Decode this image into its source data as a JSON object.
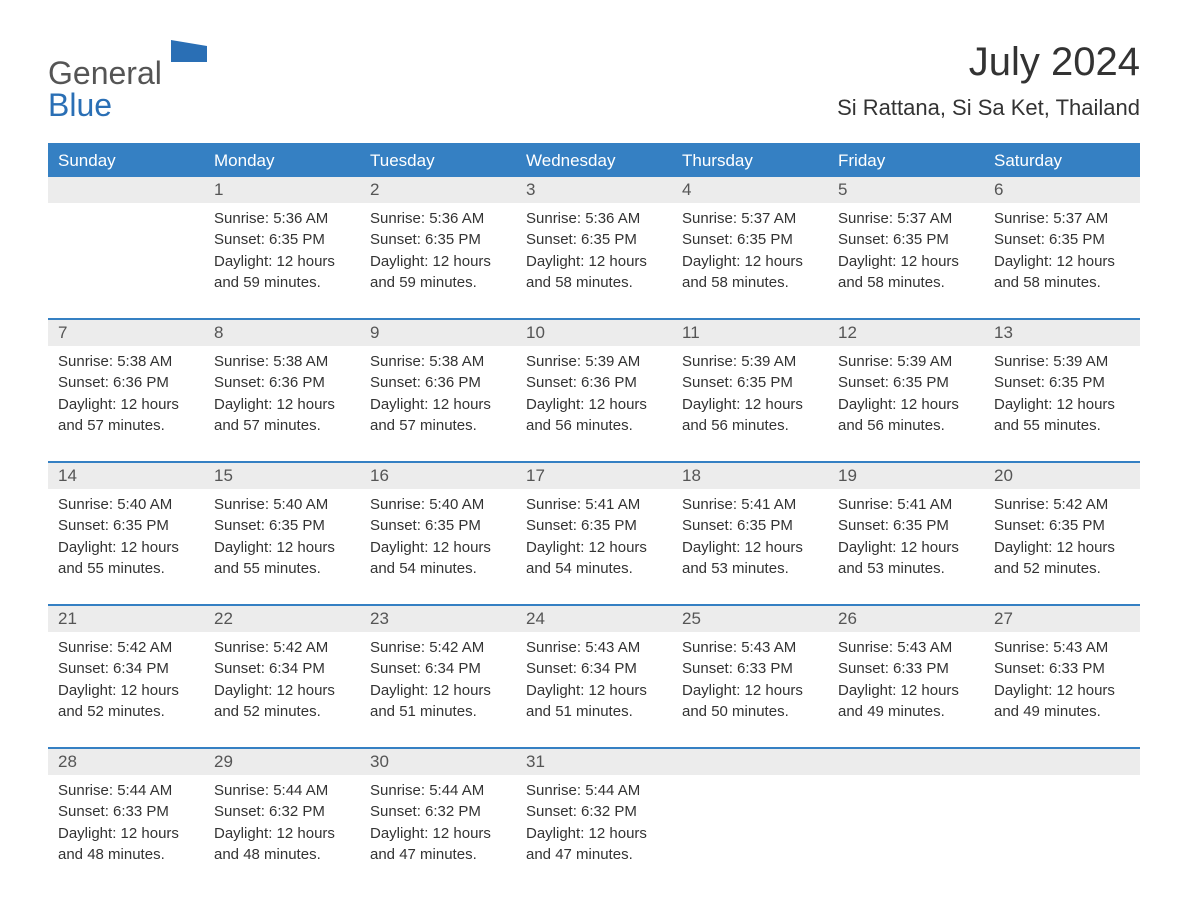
{
  "logo": {
    "text1": "General",
    "text2": "Blue"
  },
  "title": "July 2024",
  "location": "Si Rattana, Si Sa Ket, Thailand",
  "colors": {
    "header_bg": "#3580c3",
    "header_text": "#ffffff",
    "daynum_bg": "#ececec",
    "daynum_text": "#555555",
    "body_text": "#333333",
    "logo_gray": "#555555",
    "logo_blue": "#2a6fb5",
    "background": "#ffffff"
  },
  "fonts": {
    "title_size_pt": 30,
    "location_size_pt": 16,
    "dow_size_pt": 13,
    "daynum_size_pt": 13,
    "detail_size_pt": 11
  },
  "days_of_week": [
    "Sunday",
    "Monday",
    "Tuesday",
    "Wednesday",
    "Thursday",
    "Friday",
    "Saturday"
  ],
  "labels": {
    "sunrise": "Sunrise:",
    "sunset": "Sunset:",
    "daylight": "Daylight:"
  },
  "weeks": [
    [
      {
        "blank": true
      },
      {
        "n": "1",
        "sr": "5:36 AM",
        "ss": "6:35 PM",
        "dl1": "12 hours",
        "dl2": "and 59 minutes."
      },
      {
        "n": "2",
        "sr": "5:36 AM",
        "ss": "6:35 PM",
        "dl1": "12 hours",
        "dl2": "and 59 minutes."
      },
      {
        "n": "3",
        "sr": "5:36 AM",
        "ss": "6:35 PM",
        "dl1": "12 hours",
        "dl2": "and 58 minutes."
      },
      {
        "n": "4",
        "sr": "5:37 AM",
        "ss": "6:35 PM",
        "dl1": "12 hours",
        "dl2": "and 58 minutes."
      },
      {
        "n": "5",
        "sr": "5:37 AM",
        "ss": "6:35 PM",
        "dl1": "12 hours",
        "dl2": "and 58 minutes."
      },
      {
        "n": "6",
        "sr": "5:37 AM",
        "ss": "6:35 PM",
        "dl1": "12 hours",
        "dl2": "and 58 minutes."
      }
    ],
    [
      {
        "n": "7",
        "sr": "5:38 AM",
        "ss": "6:36 PM",
        "dl1": "12 hours",
        "dl2": "and 57 minutes."
      },
      {
        "n": "8",
        "sr": "5:38 AM",
        "ss": "6:36 PM",
        "dl1": "12 hours",
        "dl2": "and 57 minutes."
      },
      {
        "n": "9",
        "sr": "5:38 AM",
        "ss": "6:36 PM",
        "dl1": "12 hours",
        "dl2": "and 57 minutes."
      },
      {
        "n": "10",
        "sr": "5:39 AM",
        "ss": "6:36 PM",
        "dl1": "12 hours",
        "dl2": "and 56 minutes."
      },
      {
        "n": "11",
        "sr": "5:39 AM",
        "ss": "6:35 PM",
        "dl1": "12 hours",
        "dl2": "and 56 minutes."
      },
      {
        "n": "12",
        "sr": "5:39 AM",
        "ss": "6:35 PM",
        "dl1": "12 hours",
        "dl2": "and 56 minutes."
      },
      {
        "n": "13",
        "sr": "5:39 AM",
        "ss": "6:35 PM",
        "dl1": "12 hours",
        "dl2": "and 55 minutes."
      }
    ],
    [
      {
        "n": "14",
        "sr": "5:40 AM",
        "ss": "6:35 PM",
        "dl1": "12 hours",
        "dl2": "and 55 minutes."
      },
      {
        "n": "15",
        "sr": "5:40 AM",
        "ss": "6:35 PM",
        "dl1": "12 hours",
        "dl2": "and 55 minutes."
      },
      {
        "n": "16",
        "sr": "5:40 AM",
        "ss": "6:35 PM",
        "dl1": "12 hours",
        "dl2": "and 54 minutes."
      },
      {
        "n": "17",
        "sr": "5:41 AM",
        "ss": "6:35 PM",
        "dl1": "12 hours",
        "dl2": "and 54 minutes."
      },
      {
        "n": "18",
        "sr": "5:41 AM",
        "ss": "6:35 PM",
        "dl1": "12 hours",
        "dl2": "and 53 minutes."
      },
      {
        "n": "19",
        "sr": "5:41 AM",
        "ss": "6:35 PM",
        "dl1": "12 hours",
        "dl2": "and 53 minutes."
      },
      {
        "n": "20",
        "sr": "5:42 AM",
        "ss": "6:35 PM",
        "dl1": "12 hours",
        "dl2": "and 52 minutes."
      }
    ],
    [
      {
        "n": "21",
        "sr": "5:42 AM",
        "ss": "6:34 PM",
        "dl1": "12 hours",
        "dl2": "and 52 minutes."
      },
      {
        "n": "22",
        "sr": "5:42 AM",
        "ss": "6:34 PM",
        "dl1": "12 hours",
        "dl2": "and 52 minutes."
      },
      {
        "n": "23",
        "sr": "5:42 AM",
        "ss": "6:34 PM",
        "dl1": "12 hours",
        "dl2": "and 51 minutes."
      },
      {
        "n": "24",
        "sr": "5:43 AM",
        "ss": "6:34 PM",
        "dl1": "12 hours",
        "dl2": "and 51 minutes."
      },
      {
        "n": "25",
        "sr": "5:43 AM",
        "ss": "6:33 PM",
        "dl1": "12 hours",
        "dl2": "and 50 minutes."
      },
      {
        "n": "26",
        "sr": "5:43 AM",
        "ss": "6:33 PM",
        "dl1": "12 hours",
        "dl2": "and 49 minutes."
      },
      {
        "n": "27",
        "sr": "5:43 AM",
        "ss": "6:33 PM",
        "dl1": "12 hours",
        "dl2": "and 49 minutes."
      }
    ],
    [
      {
        "n": "28",
        "sr": "5:44 AM",
        "ss": "6:33 PM",
        "dl1": "12 hours",
        "dl2": "and 48 minutes."
      },
      {
        "n": "29",
        "sr": "5:44 AM",
        "ss": "6:32 PM",
        "dl1": "12 hours",
        "dl2": "and 48 minutes."
      },
      {
        "n": "30",
        "sr": "5:44 AM",
        "ss": "6:32 PM",
        "dl1": "12 hours",
        "dl2": "and 47 minutes."
      },
      {
        "n": "31",
        "sr": "5:44 AM",
        "ss": "6:32 PM",
        "dl1": "12 hours",
        "dl2": "and 47 minutes."
      },
      {
        "blank": true
      },
      {
        "blank": true
      },
      {
        "blank": true
      }
    ]
  ]
}
